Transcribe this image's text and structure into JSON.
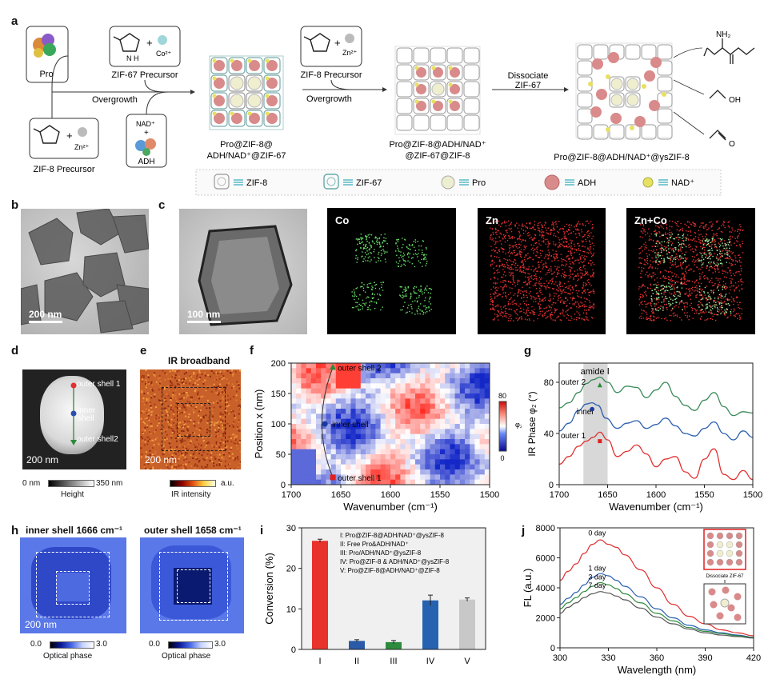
{
  "panels": {
    "a": "a",
    "b": "b",
    "c": "c",
    "d": "d",
    "e": "e",
    "f": "f",
    "g": "g",
    "h": "h",
    "i": "i",
    "j": "j"
  },
  "scheme": {
    "pro": "Pro",
    "zif67_precursor": "ZIF-67 Precursor",
    "zif8_precursor_left": "ZIF-8 Precursor",
    "zif8_precursor_mid": "ZIF-8 Precursor",
    "co_ion": "Co²⁺",
    "zn_ion": "Zn²⁺",
    "nad": "NAD⁺",
    "plus": "+",
    "adh": "ADH",
    "overgrowth1": "Overgrowth",
    "overgrowth2": "Overgrowth",
    "dissociate_line1": "Dissociate",
    "dissociate_line2": "ZIF-67",
    "product1_line1": "Pro@ZIF-8@",
    "product1_line2": "ADH/NAD⁺@ZIF-67",
    "product2_line1": "Pro@ZIF-8@ADH/NAD⁺",
    "product2_line2": "@ZIF-67@ZIF-8",
    "product3": "Pro@ZIF-8@ADH/NAD⁺@ysZIF-8",
    "nh2": "NH₂",
    "oh": "OH",
    "o": "O",
    "legend": {
      "zif8": "ZIF-8",
      "zif67": "ZIF-67",
      "pro": "Pro",
      "adh": "ADH",
      "nad": "NAD⁺"
    }
  },
  "panel_b": {
    "scalebar": "200 nm"
  },
  "panel_c": {
    "scalebar": "100 nm",
    "co": "Co",
    "zn": "Zn",
    "zn_co": "Zn+Co"
  },
  "panel_d": {
    "outer1": "outer shell 1",
    "inner_l1": "inner",
    "inner_l2": "shell",
    "outer2": "outer shell2",
    "scalebar": "200 nm",
    "cb_min": "0 nm",
    "cb_max": "350 nm",
    "cb_title": "Height"
  },
  "panel_e": {
    "title": "IR broadband",
    "scalebar": "200 nm",
    "cb_unit": "a.u.",
    "cb_title": "IR intensity"
  },
  "panel_h": {
    "title1": "inner shell 1666 cm⁻¹",
    "title2": "outer shell 1658 cm⁻¹",
    "scalebar": "200 nm",
    "cb_min": "0.0",
    "cb_max": "3.0",
    "cb_title": "Optical phase"
  },
  "chart_data": [
    {
      "panel": "f",
      "type": "heatmap",
      "xlabel": "Wavenumber (cm⁻¹)",
      "ylabel": "Position x (nm)",
      "xlim": [
        1700,
        1500
      ],
      "ylim": [
        0,
        200
      ],
      "xticks": [
        "1700",
        "1650",
        "1600",
        "1550",
        "1500"
      ],
      "yticks": [
        "0",
        "50",
        "100",
        "150",
        "200"
      ],
      "colorbar": {
        "label": "φ₂",
        "min": "0",
        "max": "80"
      },
      "annotations": [
        {
          "text": "outer shell 2",
          "x": 1658,
          "y": 193
        },
        {
          "text": "inner shell",
          "x": 1666,
          "y": 100
        },
        {
          "text": "outer shell 1",
          "x": 1658,
          "y": 12
        }
      ]
    },
    {
      "panel": "g",
      "type": "line",
      "xlabel": "Wavenumber (cm⁻¹)",
      "ylabel": "IR Phase φ₂ (°)",
      "xlim": [
        1700,
        1500
      ],
      "ylim": [
        0,
        95
      ],
      "xticks": [
        "1700",
        "1650",
        "1600",
        "1550",
        "1500"
      ],
      "yticks": [
        "0",
        "40",
        "80"
      ],
      "band_label": "amide Ⅰ",
      "band": [
        1675,
        1650
      ],
      "series": [
        {
          "name": "outer 2",
          "color": "#3a8a5a",
          "x": [
            1700,
            1690,
            1680,
            1672,
            1665,
            1658,
            1650,
            1640,
            1630,
            1620,
            1610,
            1600,
            1590,
            1580,
            1570,
            1560,
            1550,
            1540,
            1530,
            1520,
            1510,
            1500
          ],
          "values": [
            60,
            64,
            72,
            79,
            82,
            84,
            80,
            72,
            77,
            76,
            68,
            74,
            80,
            69,
            62,
            58,
            66,
            72,
            61,
            54,
            57,
            56
          ]
        },
        {
          "name": "inner",
          "color": "#2a5fb0",
          "x": [
            1700,
            1690,
            1680,
            1672,
            1666,
            1660,
            1652,
            1640,
            1630,
            1620,
            1610,
            1600,
            1590,
            1580,
            1570,
            1560,
            1550,
            1540,
            1530,
            1520,
            1510,
            1500
          ],
          "values": [
            42,
            48,
            58,
            63,
            64,
            62,
            52,
            44,
            48,
            50,
            44,
            47,
            52,
            46,
            40,
            38,
            44,
            49,
            40,
            35,
            42,
            37
          ]
        },
        {
          "name": "outer 1",
          "color": "#e03030",
          "x": [
            1700,
            1690,
            1680,
            1672,
            1665,
            1658,
            1650,
            1640,
            1630,
            1620,
            1610,
            1600,
            1590,
            1580,
            1570,
            1560,
            1550,
            1540,
            1530,
            1520,
            1510,
            1500
          ],
          "values": [
            16,
            22,
            30,
            34,
            37,
            41,
            35,
            22,
            26,
            31,
            24,
            14,
            20,
            22,
            10,
            5,
            20,
            28,
            8,
            4,
            11,
            4
          ]
        }
      ],
      "markers": [
        {
          "series": "outer 2",
          "x": 1658,
          "y": 78
        },
        {
          "series": "inner",
          "x": 1666,
          "y": 59
        },
        {
          "series": "outer 1",
          "x": 1658,
          "y": 34
        }
      ]
    },
    {
      "panel": "i",
      "type": "bar",
      "xlabel": "",
      "ylabel": "Conversion (%)",
      "ylim": [
        0,
        30
      ],
      "yticks": [
        "0",
        "10",
        "20",
        "30"
      ],
      "categories": [
        "I",
        "II",
        "III",
        "IV",
        "V"
      ],
      "values": [
        26.8,
        2.1,
        1.8,
        12.1,
        12.3
      ],
      "errors": [
        0.4,
        0.3,
        0.4,
        1.3,
        0.4
      ],
      "colors": [
        "#e8322c",
        "#2a5aa8",
        "#2e8b3e",
        "#2563b0",
        "#c8c8c8"
      ],
      "legend": [
        "I: Pro@ZIF-8@ADH/NAD⁺@ysZIF-8",
        "II: Free Pro&ADH/NAD⁺",
        "III: Pro/ADH/NAD⁺@ysZIF-8",
        "IV: Pro@ZIF-8 & ADH/NAD⁺@ysZIF-8",
        "V: Pro@ZIF-8@ADH/NAD⁺@ZIF-8"
      ]
    },
    {
      "panel": "j",
      "type": "line",
      "xlabel": "Wavelength (nm)",
      "ylabel": "FL (a.u.)",
      "xlim": [
        300,
        420
      ],
      "ylim": [
        0,
        8000
      ],
      "xticks": [
        "300",
        "330",
        "360",
        "390",
        "420"
      ],
      "yticks": [
        "0",
        "2000",
        "4000",
        "6000",
        "8000"
      ],
      "inset_label": "Dissociate ZIF-67",
      "series": [
        {
          "name": "0 day",
          "color": "#e03030",
          "x": [
            300,
            305,
            310,
            315,
            320,
            325,
            330,
            335,
            340,
            350,
            360,
            370,
            380,
            390,
            400,
            410,
            420
          ],
          "values": [
            4500,
            5100,
            5600,
            6300,
            6900,
            7200,
            6900,
            6700,
            6200,
            5200,
            4000,
            2900,
            2100,
            1600,
            1200,
            1000,
            800
          ]
        },
        {
          "name": "1 day",
          "color": "#2a5fb0",
          "x": [
            300,
            305,
            310,
            315,
            320,
            325,
            330,
            335,
            340,
            350,
            360,
            370,
            380,
            390,
            400,
            410,
            420
          ],
          "values": [
            2900,
            3300,
            3700,
            4200,
            4700,
            4950,
            4800,
            4500,
            4100,
            3400,
            2600,
            2000,
            1500,
            1200,
            1000,
            850,
            700
          ]
        },
        {
          "name": "3 day",
          "color": "#2e8b3e",
          "x": [
            300,
            305,
            310,
            315,
            320,
            325,
            330,
            335,
            340,
            350,
            360,
            370,
            380,
            390,
            400,
            410,
            420
          ],
          "values": [
            2600,
            3000,
            3350,
            3750,
            4100,
            4350,
            4200,
            3950,
            3600,
            3000,
            2300,
            1800,
            1350,
            1100,
            950,
            800,
            680
          ]
        },
        {
          "name": "7 day",
          "color": "#555555",
          "x": [
            300,
            305,
            310,
            315,
            320,
            325,
            330,
            335,
            340,
            350,
            360,
            370,
            380,
            390,
            400,
            410,
            420
          ],
          "values": [
            2300,
            2700,
            3000,
            3350,
            3600,
            3750,
            3650,
            3450,
            3200,
            2650,
            2050,
            1600,
            1250,
            1000,
            850,
            750,
            650
          ]
        }
      ]
    }
  ]
}
